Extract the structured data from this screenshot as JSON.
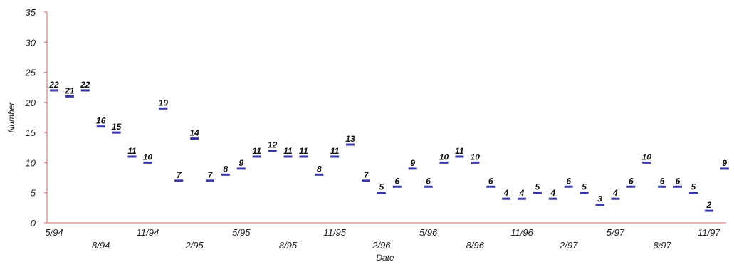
{
  "chart_data": {
    "type": "scatter",
    "title": "",
    "xlabel": "Date",
    "ylabel": "Number",
    "ylim": [
      0,
      35
    ],
    "yticks": [
      0,
      5,
      10,
      15,
      20,
      25,
      30,
      35
    ],
    "grid": false,
    "legend": "none",
    "marker_color": "#3a3aa8",
    "axis_color": "#cc6666",
    "x_tick_labels": [
      {
        "label": "5/94",
        "index": 0
      },
      {
        "label": "8/94",
        "index": 3
      },
      {
        "label": "11/94",
        "index": 6
      },
      {
        "label": "2/95",
        "index": 9
      },
      {
        "label": "5/95",
        "index": 12
      },
      {
        "label": "8/95",
        "index": 15
      },
      {
        "label": "11/95",
        "index": 18
      },
      {
        "label": "2/96",
        "index": 21
      },
      {
        "label": "5/96",
        "index": 24
      },
      {
        "label": "8/96",
        "index": 27
      },
      {
        "label": "11/96",
        "index": 30
      },
      {
        "label": "2/97",
        "index": 33
      },
      {
        "label": "5/97",
        "index": 36
      },
      {
        "label": "8/97",
        "index": 39
      },
      {
        "label": "11/97",
        "index": 42
      }
    ],
    "values": [
      22,
      21,
      22,
      16,
      15,
      11,
      10,
      19,
      7,
      14,
      7,
      8,
      9,
      11,
      12,
      11,
      11,
      8,
      11,
      13,
      7,
      5,
      6,
      9,
      6,
      10,
      11,
      10,
      6,
      4,
      4,
      5,
      4,
      6,
      5,
      3,
      4,
      6,
      10,
      6,
      6,
      5,
      2,
      9
    ]
  }
}
